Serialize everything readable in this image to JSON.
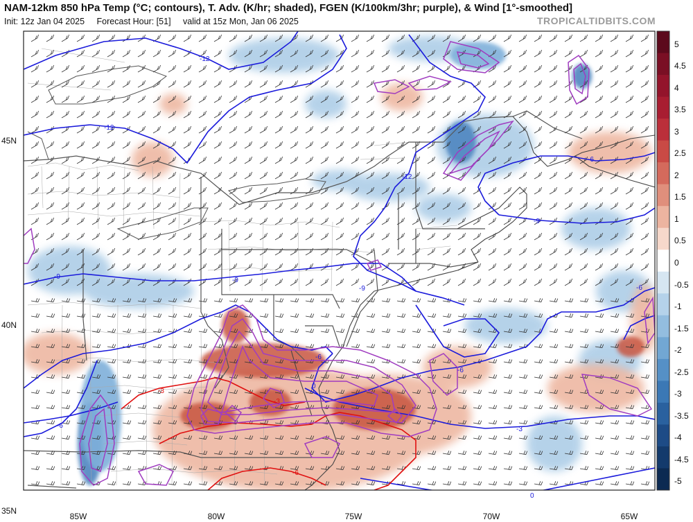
{
  "header": {
    "title": "NAM-12km 850 hPa Temp (°C; contours), T. Adv. (K/hr; shaded), FGEN (K/100km/3hr; purple), & Wind [1°-smoothed]",
    "init": "Init: 12z Jan 04 2025",
    "forecast_hour": "Forecast Hour: [51]",
    "valid": "valid at 15z Mon, Jan 06 2025",
    "brand": "TROPICALTIDBITS.COM"
  },
  "axes": {
    "lat_labels": [
      "45N",
      "40N",
      "35N"
    ],
    "lon_labels": [
      "85W",
      "80W",
      "75W",
      "70W",
      "65W"
    ]
  },
  "colorbar": {
    "ticks": [
      "5",
      "4.5",
      "4",
      "3.5",
      "3",
      "2.5",
      "2",
      "1.5",
      "1",
      "0.5",
      "0",
      "-0.5",
      "-1",
      "-1.5",
      "-2",
      "-2.5",
      "-3",
      "-3.5",
      "-4",
      "-4.5",
      "-5"
    ],
    "colors": [
      "#5c0a1c",
      "#7a0f24",
      "#93142b",
      "#a81d31",
      "#bb2f3a",
      "#c94a45",
      "#d46a5c",
      "#e08f7c",
      "#ecb4a0",
      "#f6d8cb",
      "#ffffff",
      "#d6e6f2",
      "#b5d2ea",
      "#93bddf",
      "#72a7d3",
      "#5590c6",
      "#3b78b5",
      "#2a619f",
      "#1d4b86",
      "#133a6c",
      "#0c2a52"
    ]
  },
  "contour_labels": {
    "blue": [
      "-12",
      "-12",
      "-12",
      "-9",
      "-9",
      "-9",
      "-9",
      "-6",
      "-6",
      "-6",
      "-6",
      "-6",
      "-3",
      "0",
      "0"
    ],
    "red": [
      "-3",
      "-3",
      "-6"
    ]
  },
  "colors": {
    "temp_contour_cold": "#1a1adb",
    "temp_contour_warm": "#e01010",
    "fgen": "#a03cc0",
    "warm_adv": "#d4694f",
    "cold_adv": "#6fa3d6",
    "boundaries": "#444444",
    "county": "#9a9a9a"
  }
}
